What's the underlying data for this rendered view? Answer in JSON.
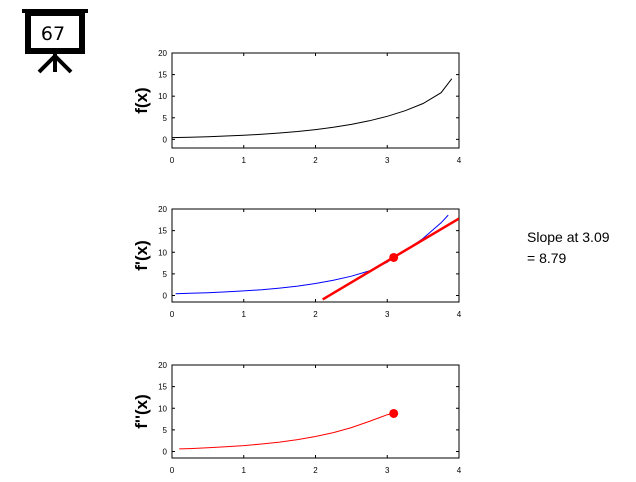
{
  "badge": {
    "number": "67"
  },
  "annotation": {
    "line1": "Slope at 3.09",
    "line2": "= 8.79"
  },
  "colors": {
    "f_curve": "#000000",
    "fprime_curve": "#0000ff",
    "fdoubleprime_curve": "#ff0000",
    "tangent_line": "#ff0000",
    "marker": "#ff0000",
    "axes": "#000000",
    "ticks": "#000000"
  },
  "chart_data": [
    {
      "type": "line",
      "ylabel": "f(x)",
      "xlabel": "",
      "xlim": [
        0,
        4
      ],
      "ylim": [
        -2,
        20
      ],
      "xticks": [
        "0",
        "1",
        "2",
        "3",
        "4"
      ],
      "yticks": [
        "0",
        "5",
        "10",
        "15",
        "20"
      ],
      "grid": false,
      "series": [
        {
          "x": [
            0.0,
            0.25,
            0.5,
            0.75,
            1.0,
            1.25,
            1.5,
            1.75,
            2.0,
            2.25,
            2.5,
            2.75,
            3.0,
            3.25,
            3.5,
            3.75,
            3.9
          ],
          "y": [
            0.4,
            0.5,
            0.62,
            0.77,
            0.95,
            1.18,
            1.47,
            1.82,
            2.25,
            2.8,
            3.47,
            4.3,
            5.35,
            6.64,
            8.3,
            10.8,
            14.05
          ]
        }
      ]
    },
    {
      "type": "line",
      "ylabel": "f'(x)",
      "xlabel": "",
      "xlim": [
        0,
        4
      ],
      "ylim": [
        -1.5,
        20
      ],
      "xticks": [
        "0",
        "1",
        "2",
        "3",
        "4"
      ],
      "yticks": [
        "0",
        "5",
        "10",
        "15",
        "20"
      ],
      "grid": false,
      "series": [
        {
          "x": [
            0.05,
            0.25,
            0.5,
            0.75,
            1.0,
            1.25,
            1.5,
            1.75,
            2.0,
            2.25,
            2.5,
            2.75,
            3.0,
            3.09,
            3.25,
            3.5,
            3.75,
            3.85
          ],
          "y": [
            0.4,
            0.52,
            0.66,
            0.84,
            1.06,
            1.35,
            1.72,
            2.18,
            2.77,
            3.52,
            4.47,
            5.68,
            7.71,
            8.79,
            10.3,
            13.2,
            16.8,
            18.6
          ]
        }
      ],
      "tangent": {
        "x": [
          2.1,
          4.0
        ],
        "y": [
          -0.9,
          17.8
        ]
      },
      "point": {
        "x": 3.09,
        "y": 8.79
      }
    },
    {
      "type": "line",
      "ylabel": "f''(x)",
      "xlabel": "",
      "xlim": [
        0,
        4
      ],
      "ylim": [
        -1.5,
        20
      ],
      "xticks": [
        "0",
        "1",
        "2",
        "3",
        "4"
      ],
      "yticks": [
        "0",
        "5",
        "10",
        "15",
        "20"
      ],
      "grid": false,
      "series": [
        {
          "x": [
            0.1,
            0.25,
            0.5,
            0.75,
            1.0,
            1.25,
            1.5,
            1.75,
            2.0,
            2.25,
            2.5,
            2.75,
            3.0,
            3.09
          ],
          "y": [
            0.6,
            0.68,
            0.86,
            1.09,
            1.37,
            1.73,
            2.18,
            2.75,
            3.47,
            4.37,
            5.52,
            6.96,
            8.5,
            8.79
          ]
        }
      ],
      "point": {
        "x": 3.09,
        "y": 8.79
      }
    }
  ]
}
